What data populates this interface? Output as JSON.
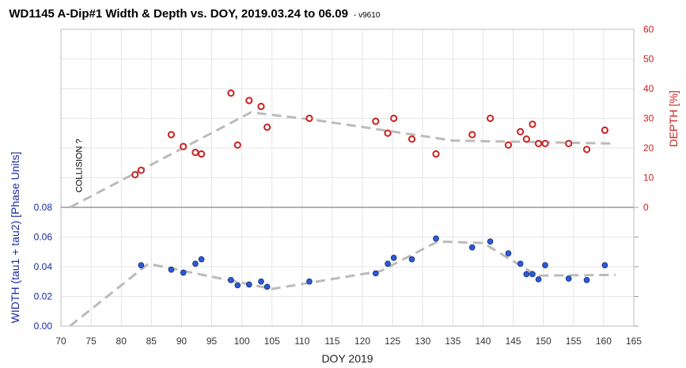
{
  "chart_data": {
    "type": "scatter",
    "title": "WD1145 A-Dip#1 Width & Depth vs. DOY, 2019.03.24 to 06.09",
    "subtitle": "- v9610",
    "xlabel": "DOY 2019",
    "xlim": [
      70,
      165
    ],
    "x_ticks": [
      "70",
      "75",
      "80",
      "85",
      "90",
      "95",
      "100",
      "105",
      "110",
      "115",
      "120",
      "125",
      "130",
      "135",
      "140",
      "145",
      "150",
      "155",
      "160",
      "165"
    ],
    "grid": true,
    "depth_panel": {
      "ylabel": "DEPTH [%]",
      "ylim": [
        0,
        60
      ],
      "y_ticks": [
        "0",
        "10",
        "20",
        "30",
        "40",
        "50",
        "60"
      ],
      "axis_side": "right",
      "color": "#cc2020",
      "series": [
        {
          "marker": "open-circle",
          "points": [
            [
              82.3,
              11
            ],
            [
              83.3,
              12.5
            ],
            [
              88.3,
              24.5
            ],
            [
              90.3,
              20.5
            ],
            [
              92.3,
              18.5
            ],
            [
              93.3,
              18
            ],
            [
              98.2,
              38.5
            ],
            [
              99.3,
              21
            ],
            [
              101.2,
              36
            ],
            [
              103.2,
              34
            ],
            [
              104.2,
              27
            ],
            [
              111.2,
              30
            ],
            [
              122.2,
              29
            ],
            [
              124.2,
              25
            ],
            [
              125.2,
              30
            ],
            [
              128.2,
              23
            ],
            [
              132.2,
              18
            ],
            [
              138.2,
              24.5
            ],
            [
              141.2,
              30
            ],
            [
              144.2,
              21
            ],
            [
              146.2,
              25.5
            ],
            [
              147.2,
              23
            ],
            [
              148.2,
              28
            ],
            [
              149.2,
              21.5
            ],
            [
              150.3,
              21.5
            ],
            [
              154.2,
              21.5
            ],
            [
              157.2,
              19.5
            ],
            [
              160.2,
              26
            ]
          ]
        },
        {
          "style": "dashed-trend",
          "color": "#bbbbbb",
          "points": [
            [
              71.5,
              0
            ],
            [
              101.5,
              32
            ],
            [
              112,
              29.5
            ],
            [
              135,
              22.5
            ],
            [
              162,
              21.5
            ]
          ]
        }
      ],
      "annotations": [
        {
          "text": "COLLISION ?",
          "x": 73.5,
          "y": 5,
          "rotation": -90
        }
      ]
    },
    "width_panel": {
      "ylabel": "WIDTH (tau1 + tau2) [Phase Units]",
      "ylim": [
        0,
        0.08
      ],
      "y_ticks": [
        "0.00",
        "0.02",
        "0.04",
        "0.06",
        "0.08"
      ],
      "axis_side": "left",
      "color": "#2a5bd7",
      "series": [
        {
          "marker": "filled-circle",
          "points": [
            [
              83.3,
              0.041
            ],
            [
              88.3,
              0.038
            ],
            [
              90.3,
              0.036
            ],
            [
              92.3,
              0.042
            ],
            [
              93.3,
              0.045
            ],
            [
              98.2,
              0.031
            ],
            [
              99.3,
              0.0275
            ],
            [
              101.2,
              0.028
            ],
            [
              103.2,
              0.03
            ],
            [
              104.2,
              0.0265
            ],
            [
              111.2,
              0.03
            ],
            [
              122.2,
              0.0355
            ],
            [
              124.2,
              0.042
            ],
            [
              125.2,
              0.046
            ],
            [
              128.2,
              0.045
            ],
            [
              132.2,
              0.059
            ],
            [
              138.2,
              0.053
            ],
            [
              141.2,
              0.057
            ],
            [
              144.2,
              0.049
            ],
            [
              146.2,
              0.042
            ],
            [
              147.2,
              0.035
            ],
            [
              148.2,
              0.035
            ],
            [
              149.2,
              0.0315
            ],
            [
              150.3,
              0.041
            ],
            [
              154.2,
              0.032
            ],
            [
              157.2,
              0.031
            ],
            [
              160.2,
              0.041
            ]
          ]
        },
        {
          "style": "dashed-trend",
          "color": "#bbbbbb",
          "points": [
            [
              71.5,
              0
            ],
            [
              84.5,
              0.042
            ],
            [
              105,
              0.025
            ],
            [
              123,
              0.037
            ],
            [
              132.5,
              0.057
            ],
            [
              140,
              0.056
            ],
            [
              149,
              0.034
            ],
            [
              162,
              0.0345
            ]
          ]
        }
      ]
    }
  }
}
